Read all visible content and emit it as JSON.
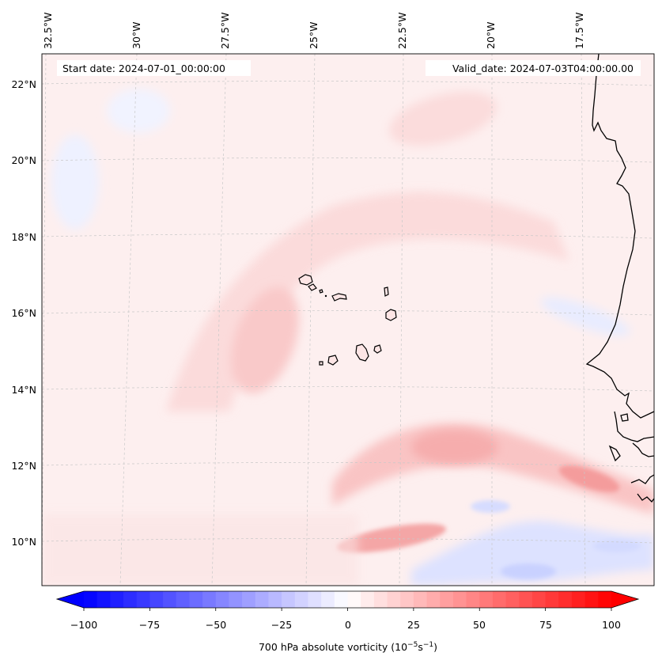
{
  "header": {
    "start_date": "Start date: 2024-07-01_00:00:00",
    "valid_date": "Valid_date: 2024-07-03T04:00:00.00"
  },
  "map": {
    "longitude_labels": [
      "32.5°W",
      "30°W",
      "27.5°W",
      "25°W",
      "22.5°W",
      "20°W",
      "17.5°W"
    ],
    "latitude_labels": [
      "22°N",
      "20°N",
      "18°N",
      "16°N",
      "14°N",
      "12°N",
      "10°N"
    ],
    "gridlines": true,
    "features": [
      "Cabo Verde islands",
      "West African coastline"
    ]
  },
  "colorbar": {
    "label": "700 hPa absolute vorticity (10",
    "label_exp1": "−5",
    "label_mid": "s",
    "label_exp2": "−1",
    "label_close": ")",
    "ticks": [
      "−100",
      "−75",
      "−50",
      "−25",
      "0",
      "25",
      "50",
      "75",
      "100"
    ],
    "min": -100,
    "max": 100,
    "n_levels": 40,
    "colormap": "bwr",
    "color_min": "#0000ff",
    "color_mid": "#ffffff",
    "color_max": "#ff0000",
    "extend": "both"
  },
  "chart_data": {
    "type": "heatmap",
    "title": "",
    "variable": "700 hPa absolute vorticity",
    "units": "10^-5 s^-1",
    "value_range": [
      -100,
      100
    ],
    "lon_range": [
      "33°W",
      "16°W"
    ],
    "lat_range": [
      "9°N",
      "22.7°N"
    ],
    "features": [
      {
        "name": "weak positive vorticity band",
        "value": 10
      },
      {
        "name": "positive maximum near 15°N 26°W",
        "value": 18
      },
      {
        "name": "positive band near 12°N",
        "value": 25
      },
      {
        "name": "coastal maximum near 11.5°N 17°W",
        "value": 40
      },
      {
        "name": "positive maximum near 10°N 23°W",
        "value": 30
      },
      {
        "name": "negative band near 10°N",
        "value": -20
      }
    ]
  }
}
